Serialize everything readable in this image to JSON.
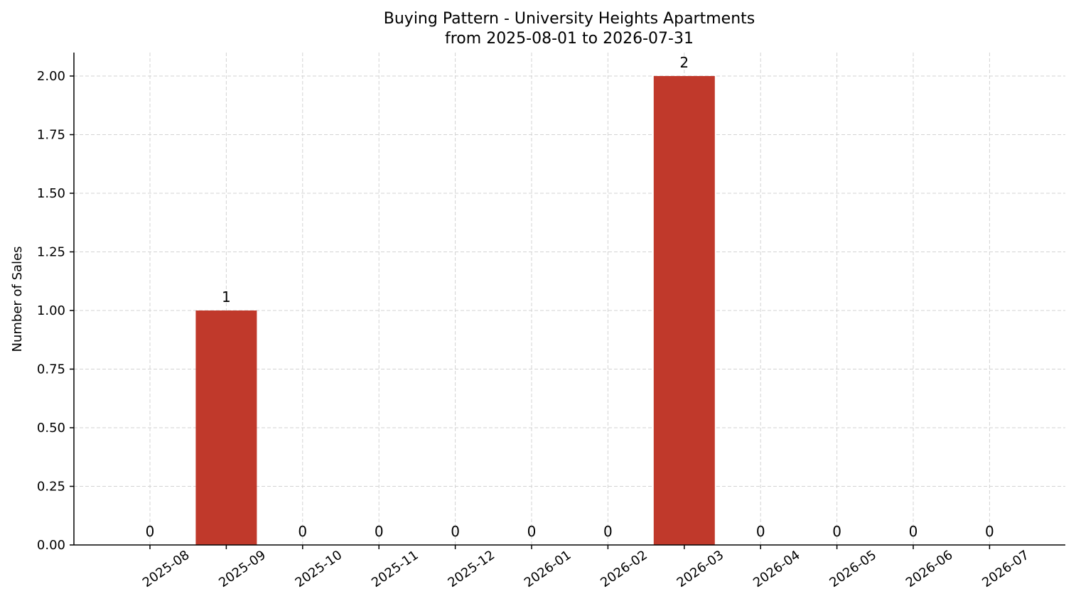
{
  "chart_data": {
    "type": "bar",
    "title": "Buying Pattern - University Heights Apartments",
    "subtitle": "from 2025-08-01 to 2026-07-31",
    "xlabel": "",
    "ylabel": "Number of Sales",
    "categories": [
      "2025-08",
      "2025-09",
      "2025-10",
      "2025-11",
      "2025-12",
      "2026-01",
      "2026-02",
      "2026-03",
      "2026-04",
      "2026-05",
      "2026-06",
      "2026-07"
    ],
    "values": [
      0,
      1,
      0,
      0,
      0,
      0,
      0,
      2,
      0,
      0,
      0,
      0
    ],
    "data_labels": [
      "0",
      "1",
      "0",
      "0",
      "0",
      "0",
      "0",
      "2",
      "0",
      "0",
      "0",
      "0"
    ],
    "ylim": [
      0,
      2.1
    ],
    "yticks": [
      0,
      0.25,
      0.5,
      0.75,
      1.0,
      1.25,
      1.5,
      1.75,
      2.0
    ],
    "ytick_labels": [
      "0.00",
      "0.25",
      "0.50",
      "0.75",
      "1.00",
      "1.25",
      "1.50",
      "1.75",
      "2.00"
    ],
    "grid": true,
    "colors": {
      "bar": "#c0392b",
      "grid": "#d3d3d3",
      "axis": "#000000"
    }
  }
}
